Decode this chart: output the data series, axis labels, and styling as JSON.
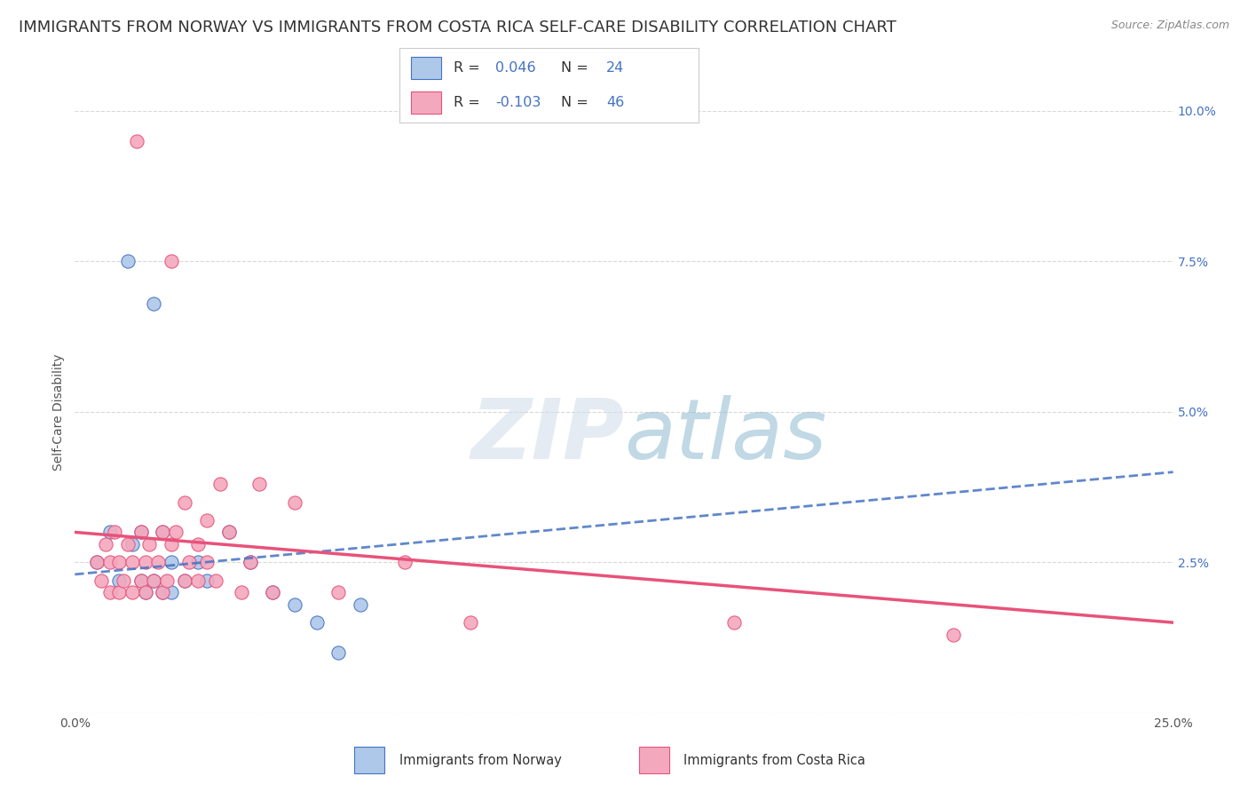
{
  "title": "IMMIGRANTS FROM NORWAY VS IMMIGRANTS FROM COSTA RICA SELF-CARE DISABILITY CORRELATION CHART",
  "source": "Source: ZipAtlas.com",
  "ylabel": "Self-Care Disability",
  "xlim": [
    0.0,
    0.25
  ],
  "ylim": [
    0.0,
    0.1
  ],
  "norway_R": 0.046,
  "norway_N": 24,
  "costarica_R": -0.103,
  "costarica_N": 46,
  "norway_color": "#adc8e8",
  "costarica_color": "#f4a8be",
  "norway_line_color": "#4472c4",
  "costarica_line_color": "#e8527a",
  "norway_line_style": "--",
  "costarica_line_style": "-",
  "legend_label_norway": "Immigrants from Norway",
  "legend_label_costarica": "Immigrants from Costa Rica",
  "norway_x": [
    0.005,
    0.008,
    0.01,
    0.012,
    0.013,
    0.015,
    0.015,
    0.016,
    0.018,
    0.018,
    0.02,
    0.02,
    0.022,
    0.022,
    0.025,
    0.028,
    0.03,
    0.035,
    0.04,
    0.045,
    0.05,
    0.055,
    0.06,
    0.065
  ],
  "norway_y": [
    0.025,
    0.03,
    0.022,
    0.075,
    0.028,
    0.022,
    0.03,
    0.02,
    0.022,
    0.068,
    0.02,
    0.03,
    0.02,
    0.025,
    0.022,
    0.025,
    0.022,
    0.03,
    0.025,
    0.02,
    0.018,
    0.015,
    0.01,
    0.018
  ],
  "costarica_x": [
    0.005,
    0.006,
    0.007,
    0.008,
    0.008,
    0.009,
    0.01,
    0.01,
    0.011,
    0.012,
    0.013,
    0.013,
    0.014,
    0.015,
    0.015,
    0.016,
    0.016,
    0.017,
    0.018,
    0.019,
    0.02,
    0.02,
    0.021,
    0.022,
    0.022,
    0.023,
    0.025,
    0.025,
    0.026,
    0.028,
    0.028,
    0.03,
    0.03,
    0.032,
    0.033,
    0.035,
    0.038,
    0.04,
    0.042,
    0.045,
    0.05,
    0.06,
    0.075,
    0.09,
    0.15,
    0.2
  ],
  "costarica_y": [
    0.025,
    0.022,
    0.028,
    0.02,
    0.025,
    0.03,
    0.02,
    0.025,
    0.022,
    0.028,
    0.02,
    0.025,
    0.095,
    0.022,
    0.03,
    0.02,
    0.025,
    0.028,
    0.022,
    0.025,
    0.02,
    0.03,
    0.022,
    0.028,
    0.075,
    0.03,
    0.022,
    0.035,
    0.025,
    0.022,
    0.028,
    0.025,
    0.032,
    0.022,
    0.038,
    0.03,
    0.02,
    0.025,
    0.038,
    0.02,
    0.035,
    0.02,
    0.025,
    0.015,
    0.015,
    0.013
  ],
  "norway_trend_x": [
    0.0,
    0.25
  ],
  "norway_trend_y": [
    0.023,
    0.04
  ],
  "costarica_trend_x": [
    0.0,
    0.25
  ],
  "costarica_trend_y": [
    0.03,
    0.015
  ],
  "background_color": "#ffffff",
  "grid_color": "#d8d8d8",
  "title_fontsize": 13,
  "axis_fontsize": 10,
  "tick_fontsize": 10,
  "right_tick_color": "#4472c4",
  "watermark_zip_color": "#d0dce8",
  "watermark_atlas_color": "#8fb8d0"
}
